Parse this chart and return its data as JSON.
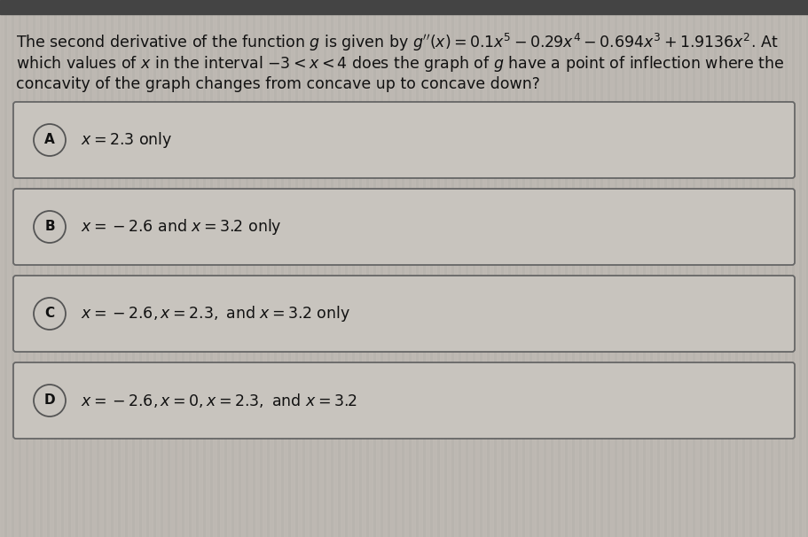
{
  "background_color": "#b8b4ae",
  "stripe_color": "#c2bdb7",
  "box_bg_color": "#c8c4be",
  "box_edge_color": "#666666",
  "top_bar_color": "#444444",
  "text_color": "#111111",
  "circle_bg_color": "#c8c4be",
  "circle_edge_color": "#555555",
  "title_line1": "The second derivative of the function $g$ is given by $g''(x) = 0.1x^5 - 0.29x^4 - 0.694x^3 + 1.9136x^2$. At",
  "title_line2": "which values of $x$ in the interval $-3 < x < 4$ does the graph of $g$ have a point of inflection where the",
  "title_line3": "concavity of the graph changes from concave up to concave down?",
  "options": [
    {
      "label": "A",
      "text": "$x = 2.3$ only"
    },
    {
      "label": "B",
      "text": "$x = -2.6$ and $x = 3.2$ only"
    },
    {
      "label": "C",
      "text": "$x = -2.6, x = 2.3,$ and $x = 3.2$ only"
    },
    {
      "label": "D",
      "text": "$x = -2.6, x = 0, x = 2.3,$ and $x = 3.2$"
    }
  ],
  "font_size": 12.5,
  "label_font_size": 11,
  "figwidth": 9.11,
  "figheight": 6.06,
  "dpi": 100
}
